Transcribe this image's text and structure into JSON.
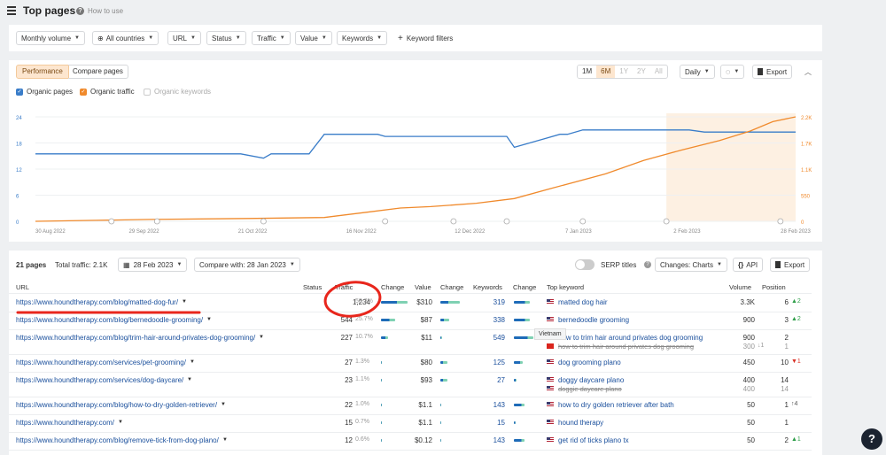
{
  "header": {
    "title": "Top pages",
    "help": "How to use"
  },
  "filters": [
    {
      "label": "Monthly volume"
    },
    {
      "label": "All countries"
    },
    {
      "label": "URL"
    },
    {
      "label": "Status"
    },
    {
      "label": "Traffic"
    },
    {
      "label": "Value"
    },
    {
      "label": "Keywords"
    }
  ],
  "keyword_filters": "Keyword filters",
  "chart_panel": {
    "tabs": [
      "Performance",
      "Compare pages"
    ],
    "ranges": [
      "1M",
      "6M",
      "1Y",
      "2Y",
      "All"
    ],
    "active_range": "6M",
    "interval": "Daily",
    "export": "Export",
    "legend": [
      "Organic pages",
      "Organic traffic",
      "Organic keywords"
    ]
  },
  "chart_data": {
    "type": "line",
    "x_ticks": [
      "30 Aug 2022",
      "29 Sep 2022",
      "21 Oct 2022",
      "16 Nov 2022",
      "12 Dec 2022",
      "7 Jan 2023",
      "2 Feb 2023",
      "28 Feb 2023"
    ],
    "y_left_ticks": [
      "24",
      "18",
      "12",
      "6",
      "0"
    ],
    "y_right_ticks": [
      "2.2K",
      "1.7K",
      "1.1K",
      "550",
      "0"
    ],
    "y_left_range": [
      0,
      24
    ],
    "y_right_range": [
      0,
      2200
    ],
    "highlight_range": [
      "2 Feb 2023",
      "28 Feb 2023"
    ],
    "series": [
      {
        "name": "Organic pages",
        "color": "#3a7dc9",
        "axis": "left",
        "points": [
          [
            0,
            15.5
          ],
          [
            0.27,
            15.5
          ],
          [
            0.3,
            14.5
          ],
          [
            0.31,
            15.5
          ],
          [
            0.36,
            15.5
          ],
          [
            0.38,
            20
          ],
          [
            0.395,
            20
          ],
          [
            0.45,
            20
          ],
          [
            0.46,
            19.5
          ],
          [
            0.62,
            19.5
          ],
          [
            0.63,
            17
          ],
          [
            0.65,
            18
          ],
          [
            0.67,
            19
          ],
          [
            0.69,
            20
          ],
          [
            0.7,
            20
          ],
          [
            0.72,
            21
          ],
          [
            0.86,
            21
          ],
          [
            0.88,
            20.5
          ],
          [
            1,
            20.5
          ]
        ]
      },
      {
        "name": "Organic traffic",
        "color": "#f08a2c",
        "axis": "right",
        "points": [
          [
            0,
            0
          ],
          [
            0.08,
            20
          ],
          [
            0.15,
            40
          ],
          [
            0.28,
            60
          ],
          [
            0.38,
            80
          ],
          [
            0.44,
            200
          ],
          [
            0.48,
            280
          ],
          [
            0.52,
            310
          ],
          [
            0.58,
            380
          ],
          [
            0.63,
            480
          ],
          [
            0.68,
            700
          ],
          [
            0.75,
            1000
          ],
          [
            0.8,
            1280
          ],
          [
            0.85,
            1500
          ],
          [
            0.9,
            1700
          ],
          [
            0.94,
            1900
          ],
          [
            0.97,
            2100
          ],
          [
            1,
            2250
          ]
        ]
      }
    ]
  },
  "table_bar": {
    "pages": "21 pages",
    "total_traffic": "Total traffic: 2.1K",
    "date": "28 Feb 2023",
    "compare": "Compare with: 28 Jan 2023",
    "serp_titles": "SERP titles",
    "changes": "Changes: Charts",
    "api": "API",
    "export": "Export"
  },
  "columns": [
    "URL",
    "Status",
    "Traffic",
    "Change",
    "Value",
    "Change",
    "Keywords",
    "Change",
    "Top keyword",
    "Volume",
    "Position"
  ],
  "rows": [
    {
      "url": "https://www.houndtherapy.com/blog/matted-dog-fur/",
      "traffic": "1,234",
      "pct": "58.3%",
      "value": "$310",
      "keywords": "319",
      "kw1": "matted dog hair",
      "vol1": "3.3K",
      "pos1": "6",
      "delta1": "▲2",
      "dir1": "up",
      "tbar": 30,
      "vbar": 22,
      "kbar": 18
    },
    {
      "url": "https://www.houndtherapy.com/blog/bernedoodle-grooming/",
      "traffic": "544",
      "pct": "25.7%",
      "value": "$87",
      "keywords": "338",
      "kw1": "bernedoodle grooming",
      "vol1": "900",
      "pos1": "3",
      "delta1": "▲2",
      "dir1": "up",
      "tbar": 16,
      "vbar": 10,
      "kbar": 18
    },
    {
      "url": "https://www.houndtherapy.com/blog/trim-hair-around-privates-dog-grooming/",
      "traffic": "227",
      "pct": "10.7%",
      "value": "$11",
      "keywords": "549",
      "kw1": "how to trim hair around privates dog grooming",
      "vol1": "900",
      "pos1": "2",
      "kw2": "how to trim hair around privates dog grooming",
      "vol2": "300",
      "pos2": "1",
      "delta2": "↓1",
      "tbar": 8,
      "vbar": 2,
      "kbar": 22
    },
    {
      "url": "https://www.houndtherapy.com/services/pet-grooming/",
      "traffic": "27",
      "pct": "1.3%",
      "value": "$80",
      "keywords": "125",
      "kw1": "dog grooming plano",
      "vol1": "450",
      "pos1": "10",
      "delta1": "▼1",
      "dir1": "down",
      "tbar": 1,
      "vbar": 8,
      "kbar": 10
    },
    {
      "url": "https://www.houndtherapy.com/services/dog-daycare/",
      "traffic": "23",
      "pct": "1.1%",
      "value": "$93",
      "keywords": "27",
      "kw1": "doggy daycare plano",
      "vol1": "400",
      "pos1": "14",
      "kw2": "doggie daycare plano",
      "vol2": "400",
      "pos2": "14",
      "tbar": 1,
      "vbar": 8,
      "kbar": 3
    },
    {
      "url": "https://www.houndtherapy.com/blog/how-to-dry-golden-retriever/",
      "traffic": "22",
      "pct": "1.0%",
      "value": "$1.1",
      "keywords": "143",
      "kw1": "how to dry golden retriever after bath",
      "vol1": "50",
      "pos1": "1",
      "delta1": "↑4",
      "dir1": "mix",
      "tbar": 1,
      "vbar": 1,
      "kbar": 12
    },
    {
      "url": "https://www.houndtherapy.com/",
      "traffic": "15",
      "pct": "0.7%",
      "value": "$1.1",
      "keywords": "15",
      "kw1": "hound therapy",
      "vol1": "50",
      "pos1": "1",
      "tbar": 1,
      "vbar": 1,
      "kbar": 2
    },
    {
      "url": "https://www.houndtherapy.com/blog/remove-tick-from-dog-plano/",
      "traffic": "12",
      "pct": "0.6%",
      "value": "$0.12",
      "keywords": "143",
      "kw1": "get rid of ticks plano tx",
      "vol1": "50",
      "pos1": "2",
      "delta1": "▲1",
      "dir1": "up",
      "tbar": 1,
      "vbar": 1,
      "kbar": 12
    }
  ],
  "tooltip": "Vietnam",
  "help_button": "?"
}
